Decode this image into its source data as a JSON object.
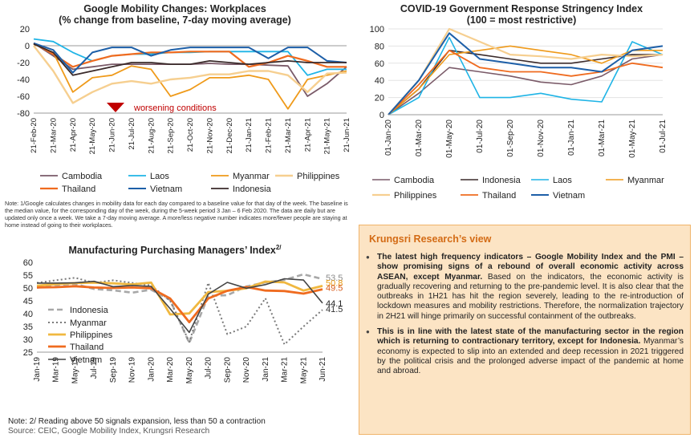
{
  "colors": {
    "Cambodia": "#7a5a68",
    "Laos": "#1fb4e6",
    "Myanmar": "#ef9a1a",
    "Philippines": "#f6cf90",
    "Thailand": "#ef6b1f",
    "Vietnam": "#1d5fa8",
    "Indonesia": "#3a2a2a",
    "pmi_indonesia": "#a8a8a8",
    "pmi_myanmar": "#7a7a7a",
    "pmi_philippines": "#f0b840",
    "pmi_thailand": "#ef6b1f",
    "pmi_vietnam": "#444444",
    "arrow": "#c00000",
    "accent": "#d36b15"
  },
  "notes": {
    "mobility": "Note: 1/Google calculates changes in mobility data for each day compared to a baseline value for that day of the week. The baseline is the median value, for the corresponding day of the week, during the 5-week period 3 Jan – 6 Feb 2020. The data are daily but are updated only once a week. We take a 7-day moving average. A more/less negative number indicates more/fewer people are staying at home instead of going to their workplaces.",
    "pmi": "Note: 2/ Reading above 50 signals expansion, less than 50 a contraction",
    "source": "Source: CEIC, Google Mobility Index, Krungsri Research"
  },
  "view": {
    "title": "Krungsri Research’s view",
    "bullet1_bold": "The latest high frequency indicators – Google Mobility Index and the PMI – show promising signs of a rebound of overall economic activity across ASEAN, except Myanmar.",
    "bullet1_text": " Based on the indicators, the economic activity is gradually recovering and returning to the pre-pandemic level. It is also clear that the outbreaks in 1H21 has hit the region severely, leading to the re-introduction of lockdown measures and mobility restrictions. Therefore, the normalization trajectory in 2H21 will hinge primarily on successful containment of the outbreaks.",
    "bullet2_bold": "This is in line with the latest state of the manufacturing sector in the region which is returning to contractionary territory, except for Indonesia.",
    "bullet2_text": " Myanmar’s economy is expected to slip into an extended and deep recession in 2021 triggered by the political crisis and the prolonged adverse impact of the pandemic at home and abroad."
  },
  "chart_data": [
    {
      "id": "mobility",
      "type": "line",
      "title": "Google Mobility Changes: Workplaces",
      "subtitle": "(% change from baseline, 7-day moving average)",
      "ylim": [
        -80,
        20
      ],
      "yticks": [
        20,
        0,
        -20,
        -40,
        -60,
        -80
      ],
      "categories": [
        "21-Feb-20",
        "21-Mar-20",
        "21-Apr-20",
        "21-May-20",
        "21-Jun-20",
        "21-Jul-20",
        "21-Aug-20",
        "21-Sep-20",
        "21-Oct-20",
        "21-Nov-20",
        "21-Dec-20",
        "21-Jan-21",
        "21-Feb-21",
        "21-Mar-21",
        "21-Apr-21",
        "21-May-21",
        "21-Jun-21"
      ],
      "annotation": "worsening conditions",
      "legend_order": [
        "Cambodia",
        "Laos",
        "Myanmar",
        "Philippines",
        "Thailand",
        "Vietnam",
        "Indonesia"
      ],
      "series": [
        {
          "name": "Cambodia",
          "values": [
            3,
            -12,
            -28,
            -25,
            -22,
            -22,
            -22,
            -22,
            -22,
            -21,
            -22,
            -22,
            -23,
            -24,
            -60,
            -45,
            -25
          ]
        },
        {
          "name": "Laos",
          "values": [
            8,
            5,
            -8,
            -18,
            -12,
            -10,
            -10,
            -8,
            -8,
            -7,
            -7,
            -7,
            -7,
            -7,
            -35,
            -28,
            -28
          ]
        },
        {
          "name": "Myanmar",
          "values": [
            2,
            -8,
            -55,
            -38,
            -35,
            -24,
            -28,
            -60,
            -52,
            -38,
            -38,
            -35,
            -40,
            -75,
            -40,
            -35,
            -30
          ]
        },
        {
          "name": "Philippines",
          "values": [
            0,
            -30,
            -68,
            -55,
            -45,
            -42,
            -45,
            -40,
            -38,
            -34,
            -34,
            -30,
            -30,
            -35,
            -55,
            -33,
            -32
          ]
        },
        {
          "name": "Thailand",
          "values": [
            3,
            -10,
            -25,
            -18,
            -12,
            -10,
            -8,
            -8,
            -7,
            -7,
            -7,
            -25,
            -20,
            -12,
            -18,
            -25,
            -25
          ]
        },
        {
          "name": "Vietnam",
          "values": [
            3,
            -5,
            -32,
            -8,
            -2,
            -2,
            -12,
            -5,
            -2,
            -2,
            -2,
            -2,
            -15,
            -2,
            -2,
            -18,
            -20
          ]
        },
        {
          "name": "Indonesia",
          "values": [
            2,
            -8,
            -35,
            -30,
            -25,
            -20,
            -20,
            -22,
            -22,
            -18,
            -20,
            -22,
            -20,
            -18,
            -20,
            -20,
            -20
          ]
        }
      ]
    },
    {
      "id": "stringency",
      "type": "line",
      "title": "COVID-19 Government Response Stringency Index",
      "subtitle": "(100 = most restrictive)",
      "ylim": [
        0,
        100
      ],
      "yticks": [
        100,
        80,
        60,
        40,
        20,
        0
      ],
      "categories": [
        "01-Jan-20",
        "01-Mar-20",
        "01-May-20",
        "01-Jul-20",
        "01-Sep-20",
        "01-Nov-20",
        "01-Jan-21",
        "01-Mar-21",
        "01-May-21",
        "01-Jul-21"
      ],
      "legend_order": [
        "Cambodia",
        "Indonesia",
        "Laos",
        "Myanmar",
        "Philippines",
        "Thailand",
        "Vietnam"
      ],
      "series": [
        {
          "name": "Cambodia",
          "values": [
            0,
            25,
            55,
            50,
            45,
            38,
            35,
            45,
            65,
            70
          ]
        },
        {
          "name": "Indonesia",
          "values": [
            0,
            30,
            75,
            70,
            65,
            60,
            60,
            65,
            70,
            70
          ]
        },
        {
          "name": "Laos",
          "values": [
            0,
            20,
            90,
            20,
            20,
            25,
            18,
            15,
            85,
            70
          ]
        },
        {
          "name": "Myanmar",
          "values": [
            0,
            30,
            70,
            75,
            80,
            75,
            70,
            60,
            75,
            75
          ]
        },
        {
          "name": "Philippines",
          "values": [
            0,
            40,
            100,
            85,
            70,
            68,
            65,
            70,
            68,
            70
          ]
        },
        {
          "name": "Thailand",
          "values": [
            0,
            35,
            75,
            55,
            50,
            50,
            45,
            50,
            60,
            55
          ]
        },
        {
          "name": "Vietnam",
          "values": [
            0,
            40,
            95,
            65,
            60,
            55,
            55,
            50,
            75,
            80
          ]
        }
      ]
    },
    {
      "id": "pmi",
      "type": "line",
      "title": "Manufacturing Purchasing Managers’ Index",
      "title_sup": "2/",
      "ylim": [
        25,
        60
      ],
      "yticks": [
        60,
        55,
        50,
        45,
        40,
        35,
        30,
        25
      ],
      "categories": [
        "Jan-19",
        "Mar-19",
        "May-19",
        "Jul-19",
        "Sep-19",
        "Nov-19",
        "Jan-20",
        "Mar-20",
        "May-20",
        "Jul-20",
        "Sep-20",
        "Nov-20",
        "Jan-21",
        "Mar-21",
        "May-21",
        "Jun-21"
      ],
      "end_labels": [
        "53.5",
        "50.8",
        "49.5",
        "44.1",
        "41.5"
      ],
      "legend_order": [
        "Indonesia",
        "Myanmar",
        "Philippines",
        "Thailand",
        "Vietnam"
      ],
      "series": [
        {
          "name": "Indonesia",
          "values": [
            50.1,
            51.2,
            51.6,
            49.6,
            49.1,
            48.2,
            49.3,
            45.3,
            28.6,
            46.9,
            47.2,
            50.6,
            52.2,
            53.2,
            55.3,
            53.5
          ]
        },
        {
          "name": "Myanmar",
          "values": [
            52.0,
            53.0,
            54.0,
            52.0,
            53.0,
            52.0,
            51.0,
            45.0,
            29.0,
            52.0,
            32.0,
            35.0,
            46.0,
            28.0,
            35.0,
            41.5
          ]
        },
        {
          "name": "Philippines",
          "values": [
            50.9,
            51.5,
            51.9,
            52.1,
            51.8,
            51.4,
            52.1,
            39.7,
            40.1,
            48.4,
            48.9,
            49.9,
            52.5,
            52.2,
            49.0,
            50.8
          ]
        },
        {
          "name": "Thailand",
          "values": [
            50.2,
            50.3,
            50.7,
            50.2,
            50.0,
            50.2,
            49.9,
            45.9,
            36.7,
            45.9,
            48.9,
            50.4,
            49.0,
            48.8,
            47.8,
            49.5
          ]
        },
        {
          "name": "Vietnam",
          "values": [
            51.9,
            51.9,
            52.0,
            52.6,
            50.5,
            51.0,
            50.6,
            41.9,
            32.7,
            47.6,
            52.2,
            49.9,
            51.3,
            53.6,
            53.1,
            44.1
          ]
        }
      ]
    }
  ]
}
